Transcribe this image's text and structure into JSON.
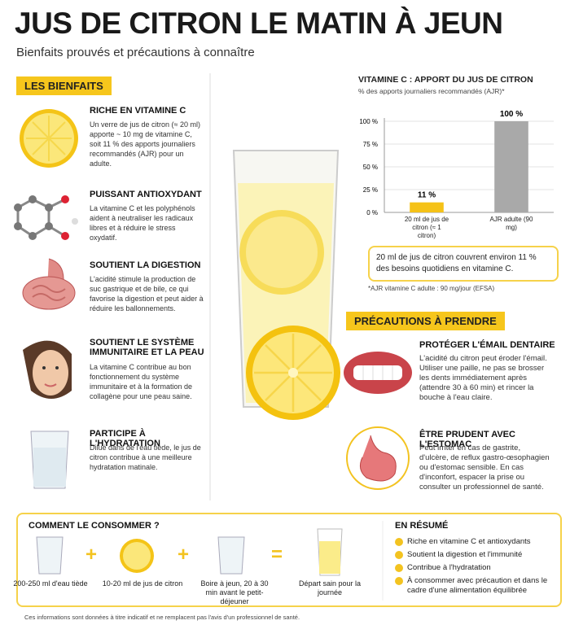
{
  "header": {
    "title": "JUS DE CITRON LE MATIN À JEUN",
    "subtitle": "Bienfaits prouvés et précautions à connaître"
  },
  "benefits": {
    "label": "LES BIENFAITS",
    "items": [
      {
        "title": "RICHE EN VITAMINE C",
        "text": "Un verre de jus de citron (≈ 20 ml) apporte ~ 10 mg de vitamine C, soit 11 % des apports journaliers recommandés (AJR) pour un adulte."
      },
      {
        "title": "PUISSANT ANTIOXYDANT",
        "text": "La vitamine C et les polyphénols aident à neutraliser les radicaux libres et à réduire le stress oxydatif."
      },
      {
        "title": "SOUTIENT LA DIGESTION",
        "text": "L'acidité stimule la production de suc gastrique et de bile, ce qui favorise la digestion et peut aider à réduire les ballonnements."
      },
      {
        "title": "SOUTIENT LE SYSTÈME IMMUNITAIRE ET LA PEAU",
        "text": "La vitamine C contribue au bon fonctionnement du système immunitaire et à la formation de collagène pour une peau saine."
      },
      {
        "title": "PARTICIPE À L'HYDRATATION",
        "text": "Dilué dans de l'eau tiède, le jus de citron contribue à une meilleure hydratation matinale."
      }
    ]
  },
  "chart_data": {
    "type": "bar",
    "title": "VITAMINE C : APPORT DU JUS DE CITRON",
    "subtitle": "% des apports journaliers recommandés (AJR)*",
    "categories": [
      "20 ml de jus de citron (≈ 1 citron)",
      "AJR adulte (90 mg)"
    ],
    "values": [
      11,
      100
    ],
    "value_labels": [
      "11 %",
      "100 %"
    ],
    "colors": [
      "#f5c218",
      "#a9a9a9"
    ],
    "ylim": [
      0,
      100
    ],
    "yticks": [
      {
        "value": 0,
        "label": "0 %"
      },
      {
        "value": 25,
        "label": "25 %"
      },
      {
        "value": 50,
        "label": "50 %"
      },
      {
        "value": 75,
        "label": "75 %"
      },
      {
        "value": 100,
        "label": "100 %"
      }
    ],
    "grid": true,
    "annotations": [
      "20 ml de jus de citron couvrent environ 11 % des besoins quotidiens en vitamine C.",
      "*AJR vitamine C adulte : 90 mg/jour (EFSA)"
    ]
  },
  "precautions": {
    "label": "PRÉCAUTIONS À PRENDRE",
    "items": [
      {
        "title": "PROTÉGER L'ÉMAIL DENTAIRE",
        "text": "L'acidité du citron peut éroder l'émail. Utiliser une paille, ne pas se brosser les dents immédiatement après (attendre 30 à 60 min) et rincer la bouche à l'eau claire."
      },
      {
        "title": "ÊTRE PRUDENT AVEC L'ESTOMAC",
        "text": "Peut irriter en cas de gastrite, d'ulcère, de reflux gastro-œsophagien ou d'estomac sensible. En cas d'inconfort, espacer la prise ou consulter un professionnel de santé."
      }
    ]
  },
  "usage": {
    "title": "COMMENT LE CONSOMMER ?",
    "steps": [
      "200-250 ml d'eau tiède",
      "10-20 ml de jus de citron",
      "Boire à jeun, 20 à 30 min avant le petit-déjeuner",
      "Départ sain pour la journée"
    ],
    "operators": [
      "+",
      "+",
      "="
    ]
  },
  "summary": {
    "title": "EN RÉSUMÉ",
    "items": [
      "Riche en vitamine C et antioxydants",
      "Soutient la digestion et l'immunité",
      "Contribue à l'hydratation",
      "À consommer avec précaution et dans le cadre d'une alimentation équilibrée"
    ]
  },
  "footer": "Ces informations sont données à titre indicatif et ne remplacent pas l'avis d'un professionnel de santé."
}
